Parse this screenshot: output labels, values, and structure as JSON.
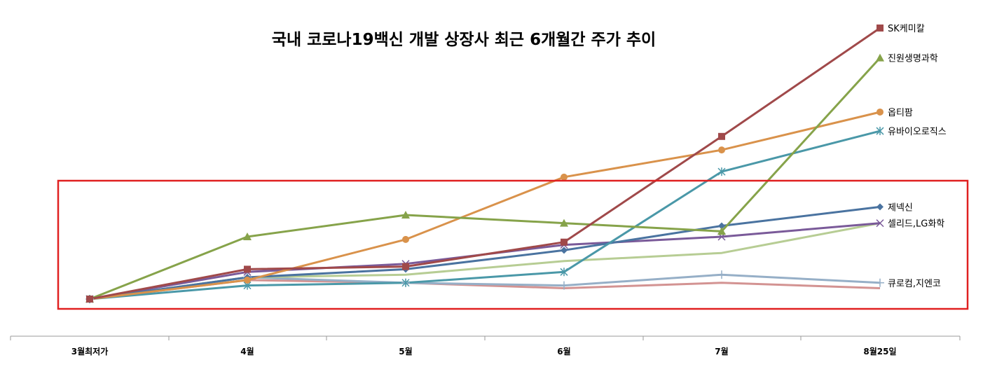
{
  "chart_data": {
    "type": "line",
    "title": "국내 코로나19백신 개발 상장사 최근 6개월간 주가 추이",
    "categories": [
      "3월최저가",
      "4월",
      "5월",
      "6월",
      "7월",
      "8월25일"
    ],
    "grid": false,
    "legend": "end-of-line labels",
    "ylim": [
      0,
      100
    ],
    "series": [
      {
        "name": "SK케미칼",
        "color": "#a0494a",
        "marker": "square",
        "values": [
          0,
          11,
          12,
          21,
          60,
          100
        ]
      },
      {
        "name": "진원생명과학",
        "color": "#86a34a",
        "marker": "triangle",
        "values": [
          0,
          23,
          31,
          28,
          25,
          89
        ]
      },
      {
        "name": "옵티팜",
        "color": "#d9924b",
        "marker": "circle",
        "values": [
          0,
          7,
          22,
          45,
          55,
          69
        ]
      },
      {
        "name": "유바이오로직스",
        "color": "#4a98a8",
        "marker": "asterisk",
        "values": [
          0,
          5,
          6,
          10,
          47,
          62
        ]
      },
      {
        "name": "제넥신",
        "color": "#4a73a0",
        "marker": "diamond",
        "values": [
          0,
          8,
          11,
          18,
          27,
          34
        ]
      },
      {
        "name": "",
        "color": "#7a5a99",
        "marker": "x",
        "values": [
          0,
          10,
          13,
          20,
          23,
          28
        ]
      },
      {
        "name": "",
        "color": "#b7cd94",
        "marker": "none",
        "values": [
          0,
          8,
          9,
          14,
          17,
          28
        ]
      },
      {
        "name": "",
        "color": "#96afc7",
        "marker": "plus",
        "values": [
          0,
          8,
          6,
          5,
          9,
          6
        ]
      },
      {
        "name": "",
        "color": "#d39392",
        "marker": "none",
        "values": [
          0,
          7,
          6,
          4,
          6,
          4
        ]
      }
    ],
    "end_labels": [
      {
        "text": "SK케미칼",
        "series": 0
      },
      {
        "text": "진원생명과학",
        "series": 1
      },
      {
        "text": "옵티팜",
        "series": 2
      },
      {
        "text": "유바이오로직스",
        "series": 3
      },
      {
        "text": "제넥신",
        "series": 4
      },
      {
        "text": "셀리드,LG화학",
        "series": 5
      },
      {
        "text": "큐로컴,지엔코",
        "series": 7
      }
    ],
    "highlight_box_color": "#e02020"
  }
}
